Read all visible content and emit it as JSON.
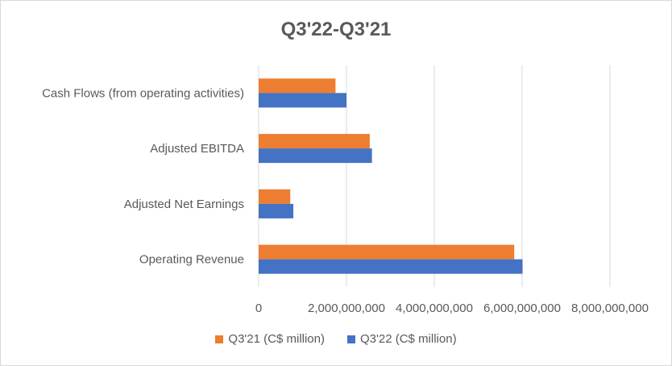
{
  "chart_data": {
    "type": "bar",
    "orientation": "horizontal",
    "title": "Q3'22-Q3'21",
    "categories": [
      "Cash Flows (from operating activities)",
      "Adjusted EBITDA",
      "Adjusted Net Earnings",
      "Operating Revenue"
    ],
    "series": [
      {
        "name": "Q3'21 (C$ million)",
        "color": "#ED7D31",
        "values": [
          1750000000,
          2530000000,
          720000000,
          5820000000
        ]
      },
      {
        "name": "Q3'22 (C$ million)",
        "color": "#4472C4",
        "values": [
          2000000000,
          2580000000,
          790000000,
          6010000000
        ]
      }
    ],
    "xlim": [
      0,
      8000000000
    ],
    "xticks": [
      "0",
      "2,000,000,000",
      "4,000,000,000",
      "6,000,000,000",
      "8,000,000,000"
    ],
    "grid": true,
    "legend_position": "bottom"
  }
}
